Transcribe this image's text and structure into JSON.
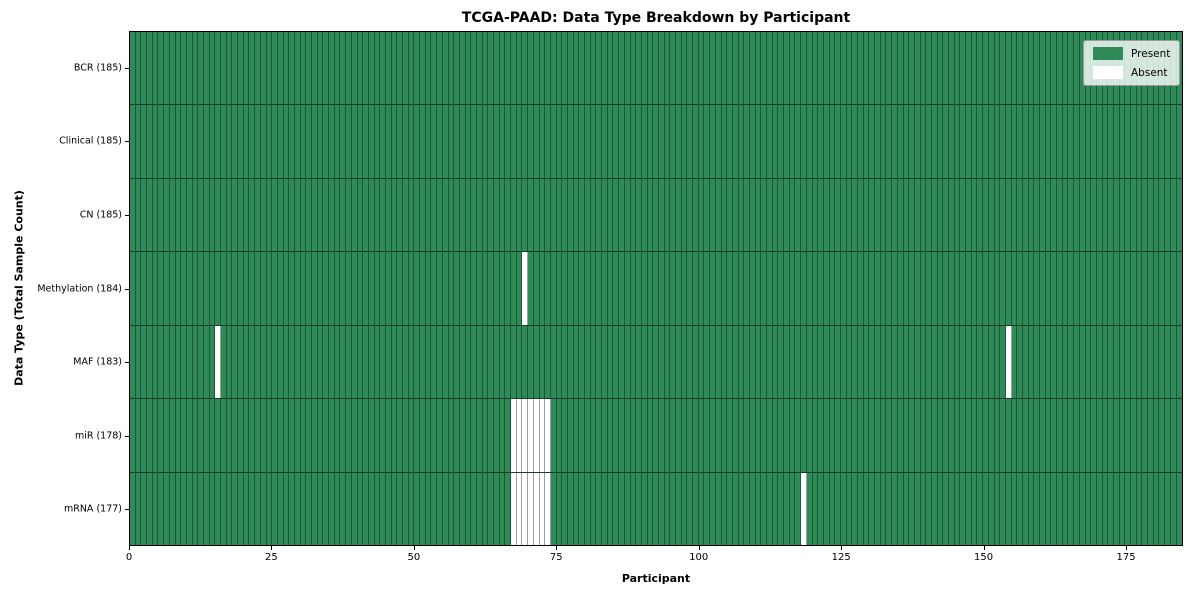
{
  "chart_data": {
    "type": "heatmap",
    "title": "TCGA-PAAD: Data Type Breakdown by Participant",
    "xlabel": "Participant",
    "ylabel": "Data Type (Total Sample Count)",
    "n_participants": 185,
    "x_range": [
      0,
      185
    ],
    "x_ticks": [
      0,
      25,
      50,
      75,
      100,
      125,
      150,
      175
    ],
    "legend_position": "upper right",
    "grid": true,
    "rows": [
      {
        "label": "BCR (185)",
        "data_type": "BCR",
        "total_samples": 185,
        "absent_participants": []
      },
      {
        "label": "Clinical (185)",
        "data_type": "Clinical",
        "total_samples": 185,
        "absent_participants": []
      },
      {
        "label": "CN (185)",
        "data_type": "CN",
        "total_samples": 185,
        "absent_participants": []
      },
      {
        "label": "Methylation (184)",
        "data_type": "Methylation",
        "total_samples": 184,
        "absent_participants": [
          69
        ]
      },
      {
        "label": "MAF (183)",
        "data_type": "MAF",
        "total_samples": 183,
        "absent_participants": [
          15,
          154
        ]
      },
      {
        "label": "miR (178)",
        "data_type": "miR",
        "total_samples": 178,
        "absent_participants": [
          67,
          68,
          69,
          70,
          71,
          72,
          73
        ]
      },
      {
        "label": "mRNA (177)",
        "data_type": "mRNA",
        "total_samples": 177,
        "absent_participants": [
          67,
          68,
          69,
          70,
          71,
          72,
          73,
          118
        ]
      }
    ],
    "legend": [
      {
        "label": "Present",
        "color": "#2E8B57"
      },
      {
        "label": "Absent",
        "color": "#FFFFFF"
      }
    ],
    "colors": {
      "present": "#2E8B57",
      "absent": "#FFFFFF",
      "cell_edge": "rgba(0,0,0,0.38)",
      "row_edge": "rgba(0,0,0,0.55)",
      "spine": "#000000"
    }
  }
}
